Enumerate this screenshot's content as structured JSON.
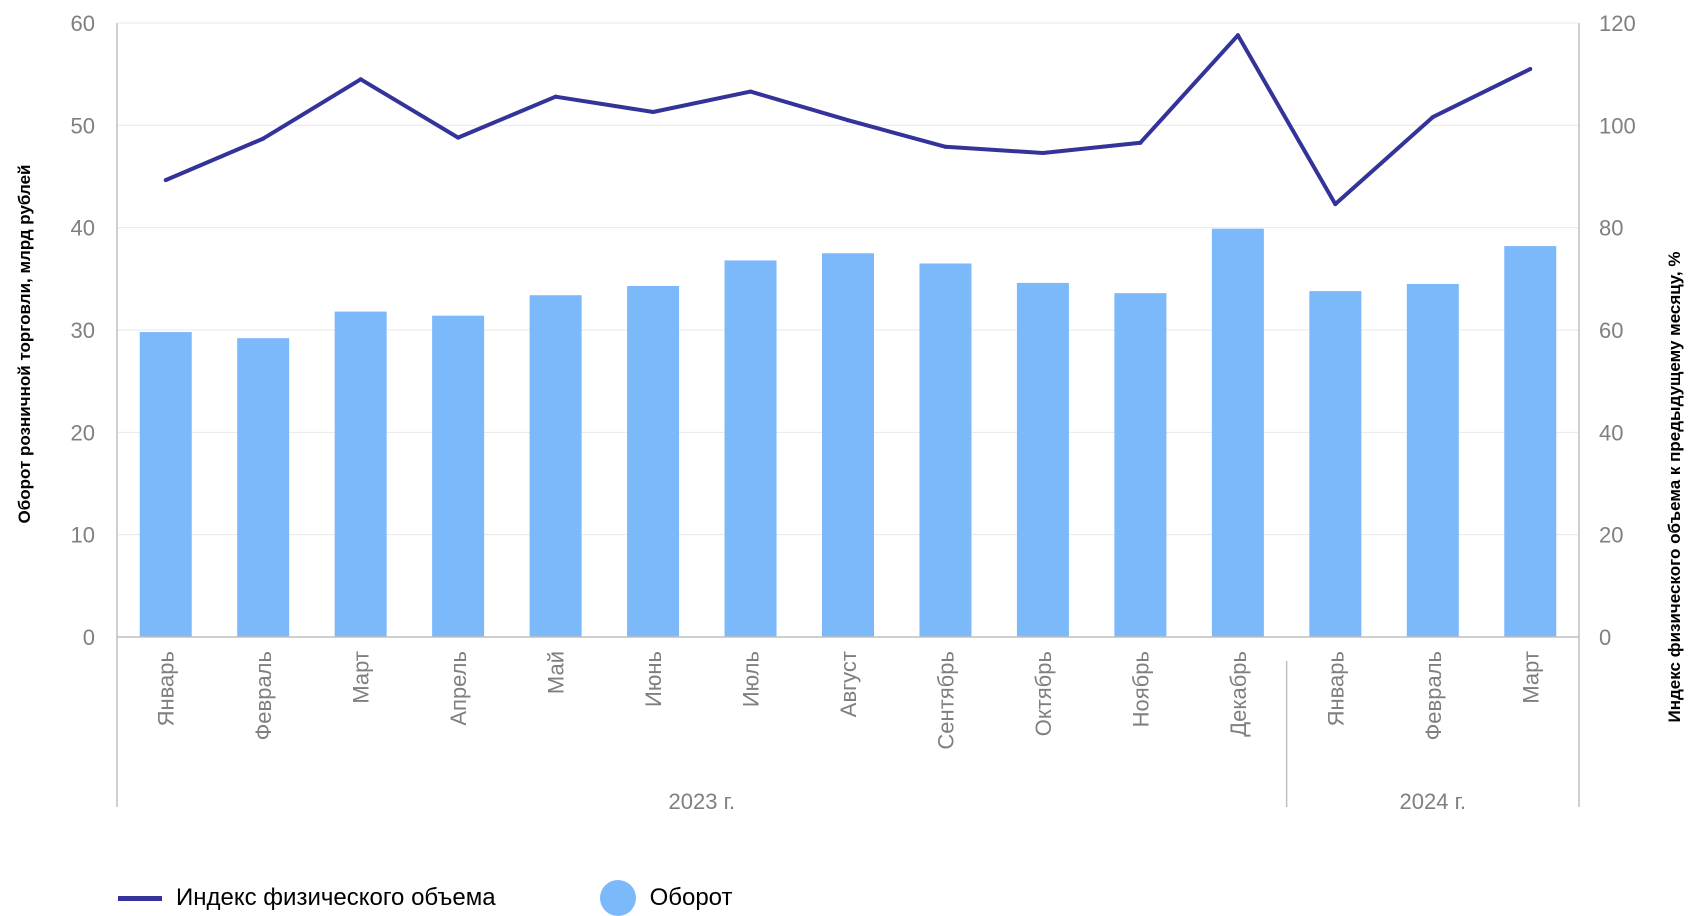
{
  "colors": {
    "bar": "#7cb9fb",
    "line": "#333399",
    "grid": "#e8e8e8",
    "axis": "#bfbfbf"
  },
  "legend": {
    "line_label": "Индекс физического объема",
    "bar_label": "Оборот"
  },
  "chart_data": {
    "type": "bar",
    "ylabel": "Оборот розничной торговли, млрд рублей",
    "y2label": "Индекс физического объема к предыдущему месяцу, %",
    "ylim": [
      0,
      60
    ],
    "y_ticks": [
      0,
      10,
      20,
      30,
      40,
      50,
      60
    ],
    "y2lim": [
      0,
      120
    ],
    "y2_ticks": [
      0,
      20,
      40,
      60,
      80,
      100,
      120
    ],
    "grid": true,
    "legend_position": "bottom",
    "categories": [
      "Январь",
      "Февраль",
      "Март",
      "Апрель",
      "Май",
      "Июнь",
      "Июль",
      "Август",
      "Сентябрь",
      "Октябрь",
      "Ноябрь",
      "Декабрь",
      "Январь",
      "Февраль",
      "Март"
    ],
    "groups": [
      {
        "label": "2023 г.",
        "count": 12
      },
      {
        "label": "2024 г.",
        "count": 3
      }
    ],
    "series": [
      {
        "name": "Оборот",
        "type": "bar",
        "axis": "left",
        "values": [
          29.8,
          29.2,
          31.8,
          31.4,
          33.4,
          34.3,
          36.8,
          37.5,
          36.5,
          34.6,
          33.6,
          39.9,
          33.8,
          34.5,
          38.2
        ]
      },
      {
        "name": "Индекс физического объема",
        "type": "line",
        "axis": "right",
        "values": [
          89.3,
          97.4,
          109.0,
          97.6,
          105.6,
          102.6,
          106.6,
          101.0,
          95.8,
          94.6,
          96.6,
          117.6,
          84.6,
          101.6,
          111.0
        ]
      }
    ]
  }
}
